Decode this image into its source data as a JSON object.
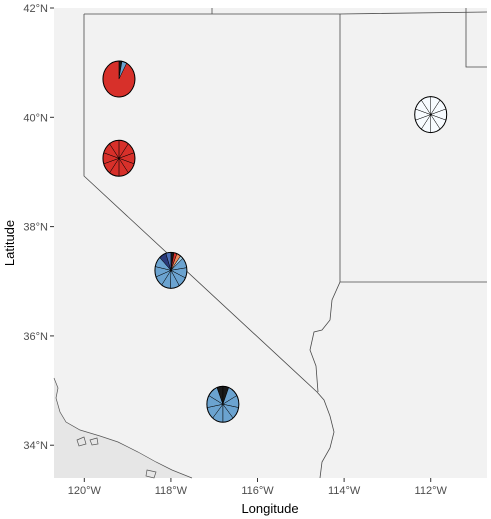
{
  "chart_data": {
    "type": "map-pie",
    "xlabel": "Longitude",
    "ylabel": "Latitude",
    "xlim": [
      -120.7,
      -110.7
    ],
    "ylim": [
      33.4,
      42.0
    ],
    "x_ticks": [
      {
        "value": -120,
        "label": "120°W"
      },
      {
        "value": -118,
        "label": "118°W"
      },
      {
        "value": -116,
        "label": "116°W"
      },
      {
        "value": -114,
        "label": "114°W"
      },
      {
        "value": -112,
        "label": "112°W"
      }
    ],
    "y_ticks": [
      {
        "value": 34,
        "label": "34°N"
      },
      {
        "value": 36,
        "label": "36°N"
      },
      {
        "value": 38,
        "label": "38°N"
      },
      {
        "value": 40,
        "label": "40°N"
      },
      {
        "value": 42,
        "label": "42°N"
      }
    ],
    "colors": {
      "land": "#f2f2f2",
      "ocean": "#e6e6e6",
      "background": "#ffffff",
      "border": "#4a4a4a",
      "pie_outline": "#000000"
    },
    "pies": [
      {
        "lon": -119.2,
        "lat": 40.7,
        "slices": [
          {
            "value": 0.03,
            "color": "#1a1a1a"
          },
          {
            "value": 0.05,
            "color": "#6ba3d0"
          },
          {
            "value": 0.92,
            "color": "#d7302a"
          }
        ]
      },
      {
        "lon": -119.2,
        "lat": 39.25,
        "slices": [
          {
            "value": 0.1,
            "color": "#d7302a"
          },
          {
            "value": 0.1,
            "color": "#d7302a"
          },
          {
            "value": 0.1,
            "color": "#d7302a"
          },
          {
            "value": 0.1,
            "color": "#d7302a"
          },
          {
            "value": 0.1,
            "color": "#d7302a"
          },
          {
            "value": 0.1,
            "color": "#d7302a"
          },
          {
            "value": 0.1,
            "color": "#d7302a"
          },
          {
            "value": 0.1,
            "color": "#d7302a"
          },
          {
            "value": 0.1,
            "color": "#d7302a"
          },
          {
            "value": 0.1,
            "color": "#d7302a"
          }
        ]
      },
      {
        "lon": -118.0,
        "lat": 37.2,
        "slices": [
          {
            "value": 0.03,
            "color": "#1a1a1a"
          },
          {
            "value": 0.03,
            "color": "#d7302a"
          },
          {
            "value": 0.04,
            "color": "#f08a5c"
          },
          {
            "value": 0.03,
            "color": "#9ecae1"
          },
          {
            "value": 0.09,
            "color": "#6ba3d0"
          },
          {
            "value": 0.09,
            "color": "#6ba3d0"
          },
          {
            "value": 0.09,
            "color": "#6ba3d0"
          },
          {
            "value": 0.09,
            "color": "#6ba3d0"
          },
          {
            "value": 0.09,
            "color": "#6ba3d0"
          },
          {
            "value": 0.09,
            "color": "#6ba3d0"
          },
          {
            "value": 0.09,
            "color": "#6ba3d0"
          },
          {
            "value": 0.09,
            "color": "#6ba3d0"
          },
          {
            "value": 0.07,
            "color": "#2b3a7a"
          },
          {
            "value": 0.05,
            "color": "#4c6fb5"
          }
        ]
      },
      {
        "lon": -116.8,
        "lat": 34.75,
        "slices": [
          {
            "value": 0.06,
            "color": "#1a1a1a"
          },
          {
            "value": 0.11,
            "color": "#6ba3d0"
          },
          {
            "value": 0.11,
            "color": "#6ba3d0"
          },
          {
            "value": 0.11,
            "color": "#6ba3d0"
          },
          {
            "value": 0.11,
            "color": "#6ba3d0"
          },
          {
            "value": 0.11,
            "color": "#6ba3d0"
          },
          {
            "value": 0.11,
            "color": "#6ba3d0"
          },
          {
            "value": 0.11,
            "color": "#6ba3d0"
          },
          {
            "value": 0.11,
            "color": "#6ba3d0"
          },
          {
            "value": 0.06,
            "color": "#1a1a1a"
          }
        ]
      },
      {
        "lon": -112.0,
        "lat": 40.05,
        "slices": [
          {
            "value": 0.1,
            "color": "#f7fbff"
          },
          {
            "value": 0.1,
            "color": "#f7fbff"
          },
          {
            "value": 0.1,
            "color": "#f7fbff"
          },
          {
            "value": 0.1,
            "color": "#f7fbff"
          },
          {
            "value": 0.1,
            "color": "#f7fbff"
          },
          {
            "value": 0.1,
            "color": "#f7fbff"
          },
          {
            "value": 0.1,
            "color": "#f7fbff"
          },
          {
            "value": 0.1,
            "color": "#f7fbff"
          },
          {
            "value": 0.1,
            "color": "#f7fbff"
          },
          {
            "value": 0.1,
            "color": "#f7fbff"
          }
        ]
      }
    ]
  }
}
